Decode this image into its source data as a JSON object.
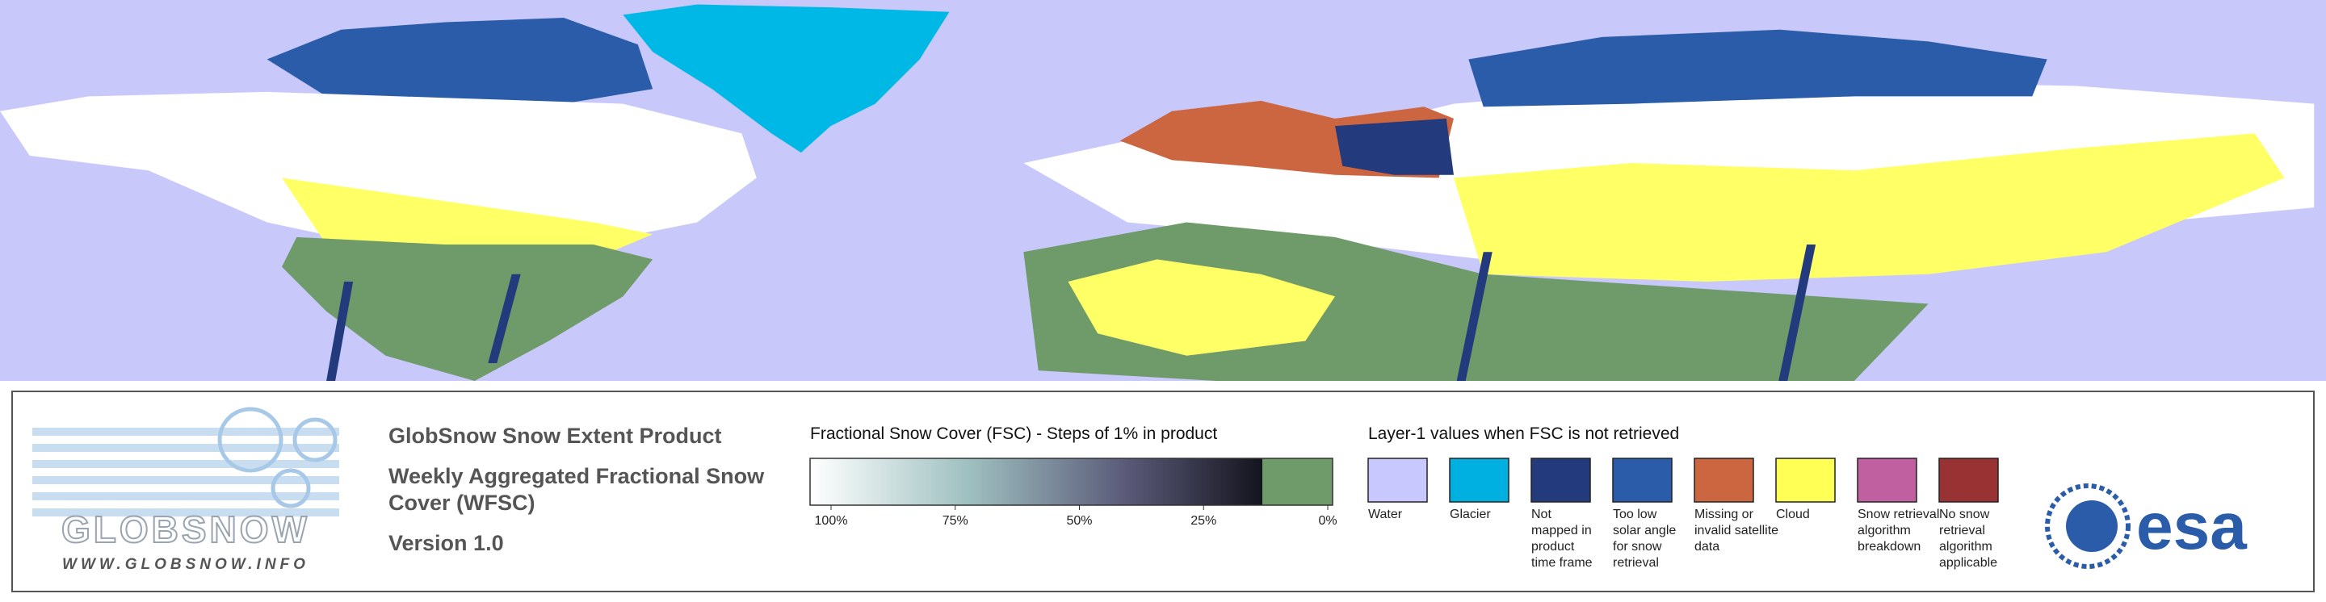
{
  "logo": {
    "name": "GLOBSNOW",
    "url": "WWW.GLOBSNOW.INFO"
  },
  "product": {
    "title": "GlobSnow Snow Extent Product",
    "subtitle_lines": [
      "Weekly Aggregated Fractional Snow",
      "Cover (WFSC)"
    ],
    "version": "Version 1.0"
  },
  "fsc_scale": {
    "title": "Fractional Snow Cover (FSC) - Steps of 1% in product",
    "ticks": [
      {
        "value": 100,
        "label": "100%"
      },
      {
        "value": 75,
        "label": "75%"
      },
      {
        "value": 50,
        "label": "50%"
      },
      {
        "value": 25,
        "label": "25%"
      },
      {
        "value": 0,
        "label": "0%"
      }
    ]
  },
  "layer1": {
    "title": "Layer-1 values when FSC is not retrieved",
    "classes": [
      {
        "color": "#c8c8ff",
        "label_lines": [
          "Water"
        ]
      },
      {
        "color": "#00b0e0",
        "label_lines": [
          "Glacier"
        ]
      },
      {
        "color": "#233a7c",
        "label_lines": [
          "Not",
          "mapped in",
          "product",
          "time frame"
        ]
      },
      {
        "color": "#2a5caa",
        "label_lines": [
          "Too low",
          "solar angle",
          "for snow",
          "retrieval"
        ]
      },
      {
        "color": "#cc6640",
        "label_lines": [
          "Missing or",
          "invalid satellite",
          "data"
        ]
      },
      {
        "color": "#ffff55",
        "label_lines": [
          "Cloud"
        ]
      },
      {
        "color": "#c060a0",
        "label_lines": [
          "Snow retrieval",
          "algorithm",
          "breakdown"
        ]
      },
      {
        "color": "#993333",
        "label_lines": [
          "No snow",
          "retrieval",
          "algorithm",
          "applicable"
        ]
      }
    ]
  },
  "esa": "esa"
}
